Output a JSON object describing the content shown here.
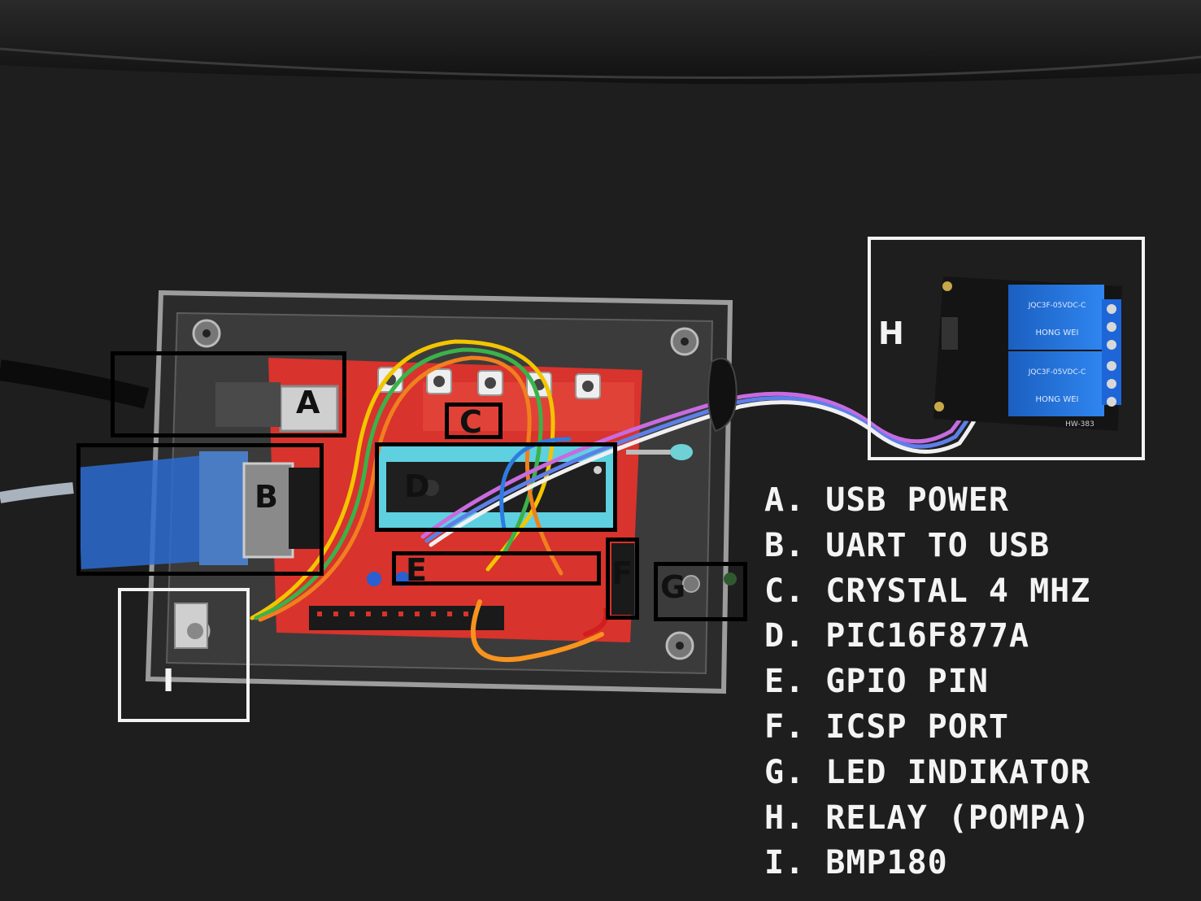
{
  "markers": {
    "a": "A",
    "b": "B",
    "c": "C",
    "d": "D",
    "e": "E",
    "f": "F",
    "g": "G",
    "h": "H",
    "i": "I"
  },
  "legend": [
    {
      "key": "A.",
      "text": "USB POWER"
    },
    {
      "key": "B.",
      "text": "UART TO USB"
    },
    {
      "key": "C.",
      "text": "CRYSTAL 4 MHZ"
    },
    {
      "key": "D.",
      "text": "PIC16F877A"
    },
    {
      "key": "E.",
      "text": "GPIO PIN"
    },
    {
      "key": "F.",
      "text": "ICSP PORT"
    },
    {
      "key": "G.",
      "text": "LED INDIKATOR"
    },
    {
      "key": "H.",
      "text": "RELAY (POMPA)"
    },
    {
      "key": "I.",
      "text": "BMP180"
    }
  ],
  "colors": {
    "background": "#1c1c1c",
    "enclosure": "#8a8a8a",
    "pcb": "#d8332c",
    "relay_blue": "#1f6fd6",
    "label_white": "#f4f4f4",
    "label_black": "#000000"
  },
  "photo_component_text": {
    "relay_model": "JQC3F-05VDC-C",
    "relay_brand": "HONG WEI",
    "relay_board": "HW-383"
  }
}
